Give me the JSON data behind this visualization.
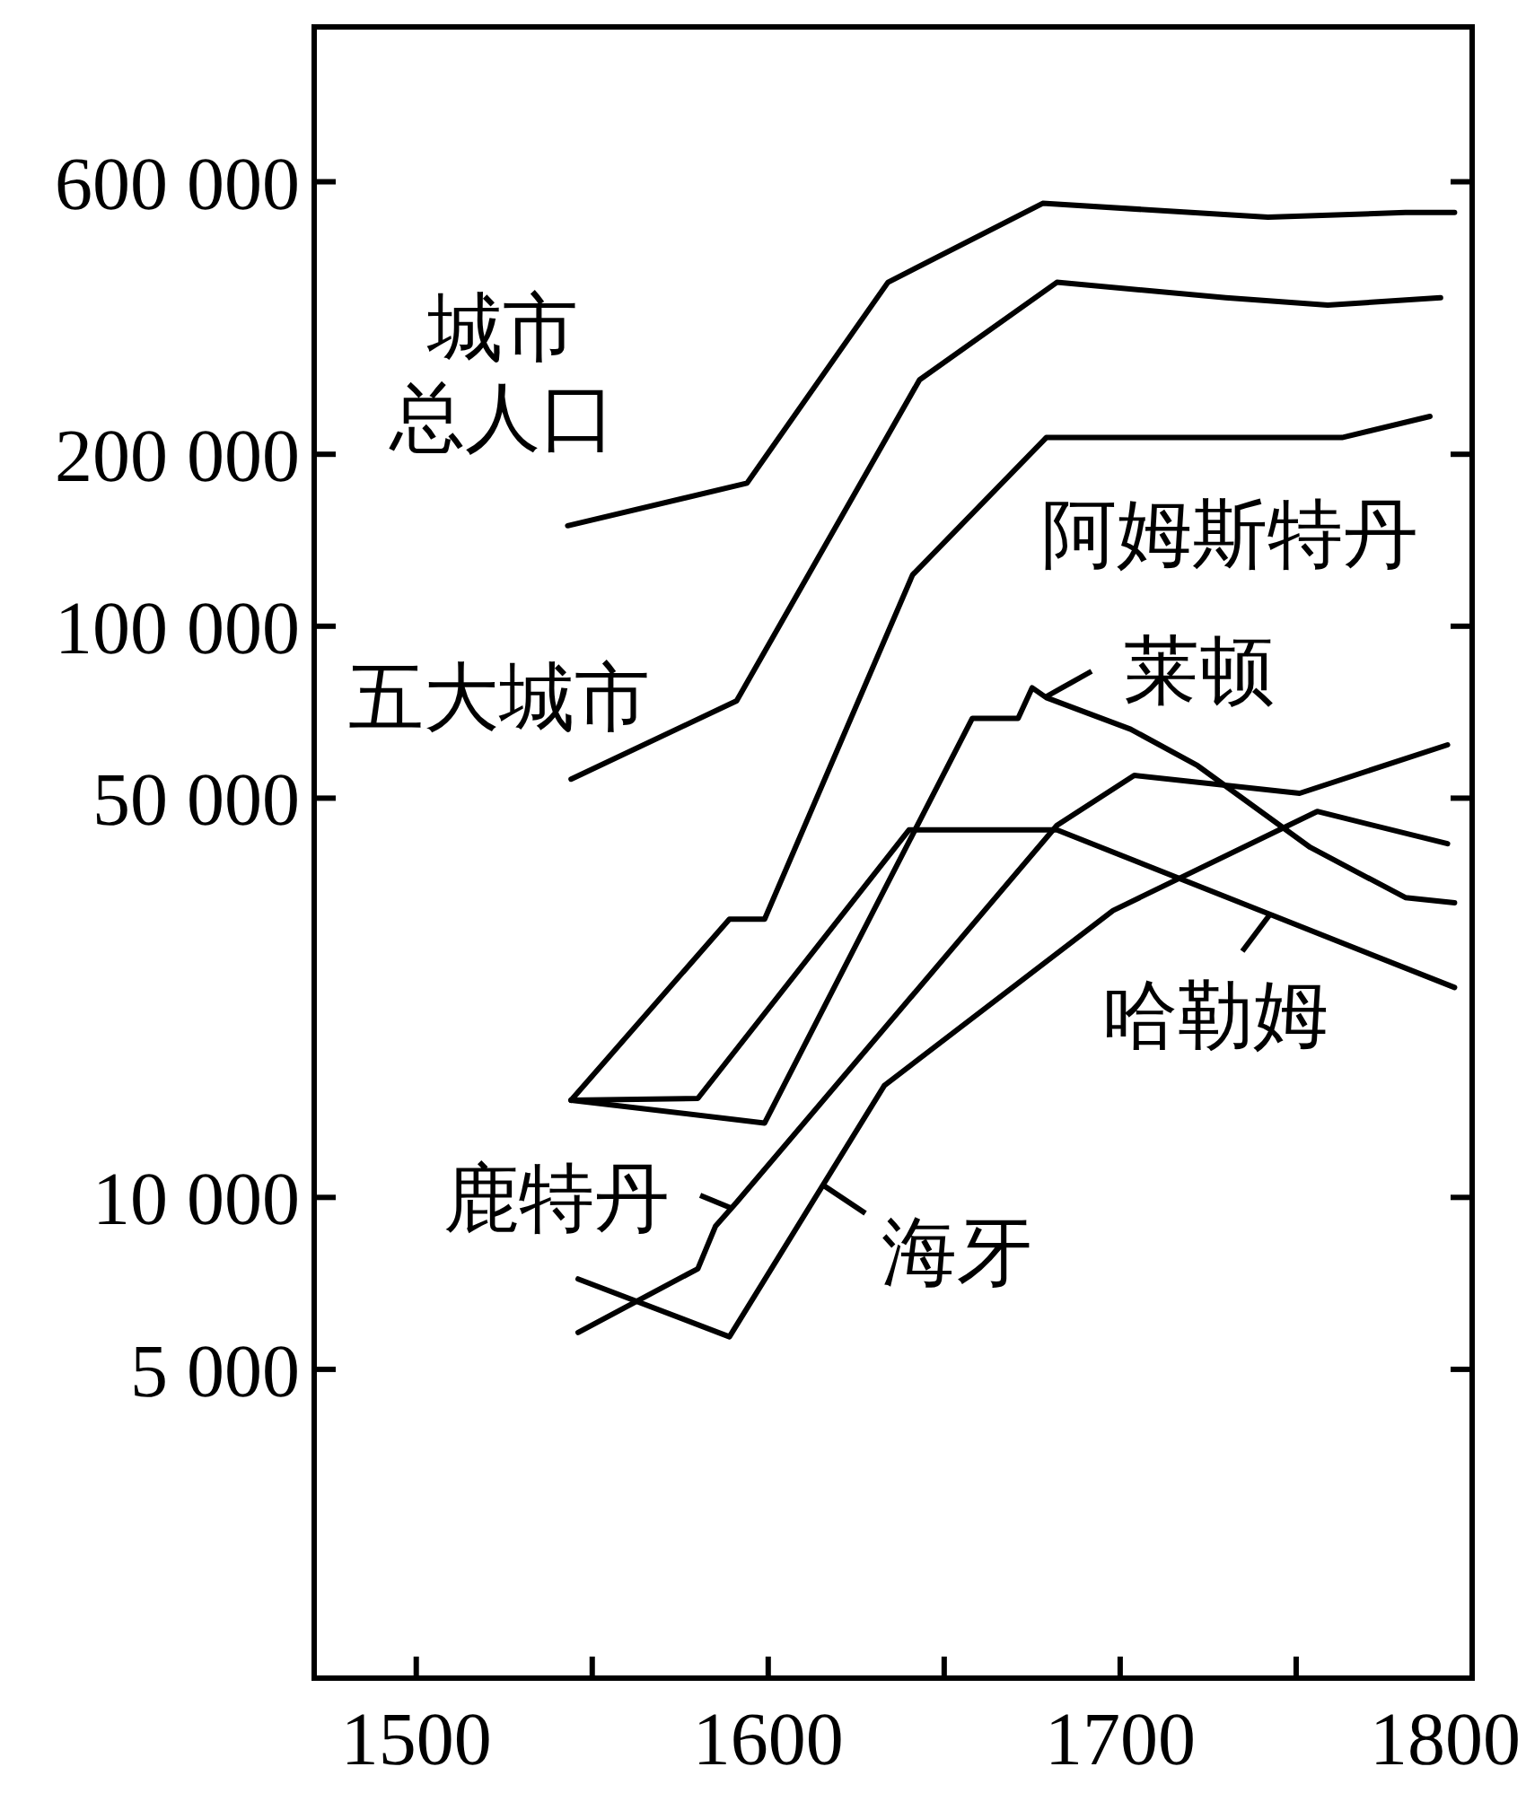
{
  "chart_data": {
    "type": "line",
    "log": true,
    "grid": false,
    "legend": "right",
    "marker": "none",
    "line_style": "solid",
    "xlim": [
      1471,
      1800
    ],
    "ylim": [
      1440,
      1120000
    ],
    "xticks": [
      1500,
      {
        "value": 1550,
        "label": null
      },
      1600,
      {
        "value": 1650,
        "label": null
      },
      1700,
      {
        "value": 1750,
        "label": null
      },
      1800
    ],
    "yticks": [
      {
        "value": 5000,
        "label": "5 000"
      },
      {
        "value": 10000,
        "label": "10 000"
      },
      {
        "value": 50000,
        "label": "50 000"
      },
      {
        "value": 100000,
        "label": "100 000"
      },
      {
        "value": 200000,
        "label": "200 000"
      },
      {
        "value": 600000,
        "label": "600 000"
      }
    ],
    "series": [
      {
        "name": "城市总人口",
        "color": "#000000",
        "x": [
          1543,
          1594,
          1634,
          1678,
          1742,
          1781,
          1795
        ],
        "values": [
          150000,
          178000,
          400000,
          550000,
          520000,
          530000,
          530000
        ]
      },
      {
        "name": "五大城市",
        "color": "#000000",
        "x": [
          1544,
          1591,
          1643,
          1682,
          1730,
          1759,
          1791
        ],
        "values": [
          54000,
          74000,
          270000,
          400000,
          376000,
          365000,
          376000
        ]
      },
      {
        "name": "阿姆斯特丹",
        "color": "#000000",
        "x": [
          1544,
          1589,
          1599,
          1641,
          1679,
          1763,
          1788
        ],
        "values": [
          14800,
          30700,
          30700,
          123000,
          214000,
          214000,
          233000
        ]
      },
      {
        "name": "莱顿",
        "color": "#000000",
        "x": [
          1544,
          1599,
          1658,
          1671,
          1675,
          1679,
          1703,
          1722,
          1754,
          1781,
          1795
        ],
        "values": [
          14800,
          13500,
          69000,
          69000,
          78000,
          75000,
          66000,
          57000,
          41000,
          33500,
          32800
        ]
      },
      {
        "name": "哈勒姆",
        "color": "#000000",
        "x": [
          1544,
          1580,
          1640,
          1682,
          1742,
          1795
        ],
        "values": [
          14800,
          14900,
          44000,
          44000,
          31400,
          23300
        ]
      },
      {
        "name": "鹿特丹",
        "color": "#000000",
        "x": [
          1546,
          1580,
          1585,
          1591,
          1682,
          1704,
          1751,
          1793
        ],
        "values": [
          5800,
          7500,
          8900,
          9800,
          44800,
          54800,
          51000,
          62000
        ]
      },
      {
        "name": "海牙",
        "color": "#000000",
        "x": [
          1546,
          1589,
          1633,
          1698,
          1756,
          1793
        ],
        "values": [
          7200,
          5700,
          15700,
          31800,
          47400,
          41600
        ]
      }
    ]
  }
}
